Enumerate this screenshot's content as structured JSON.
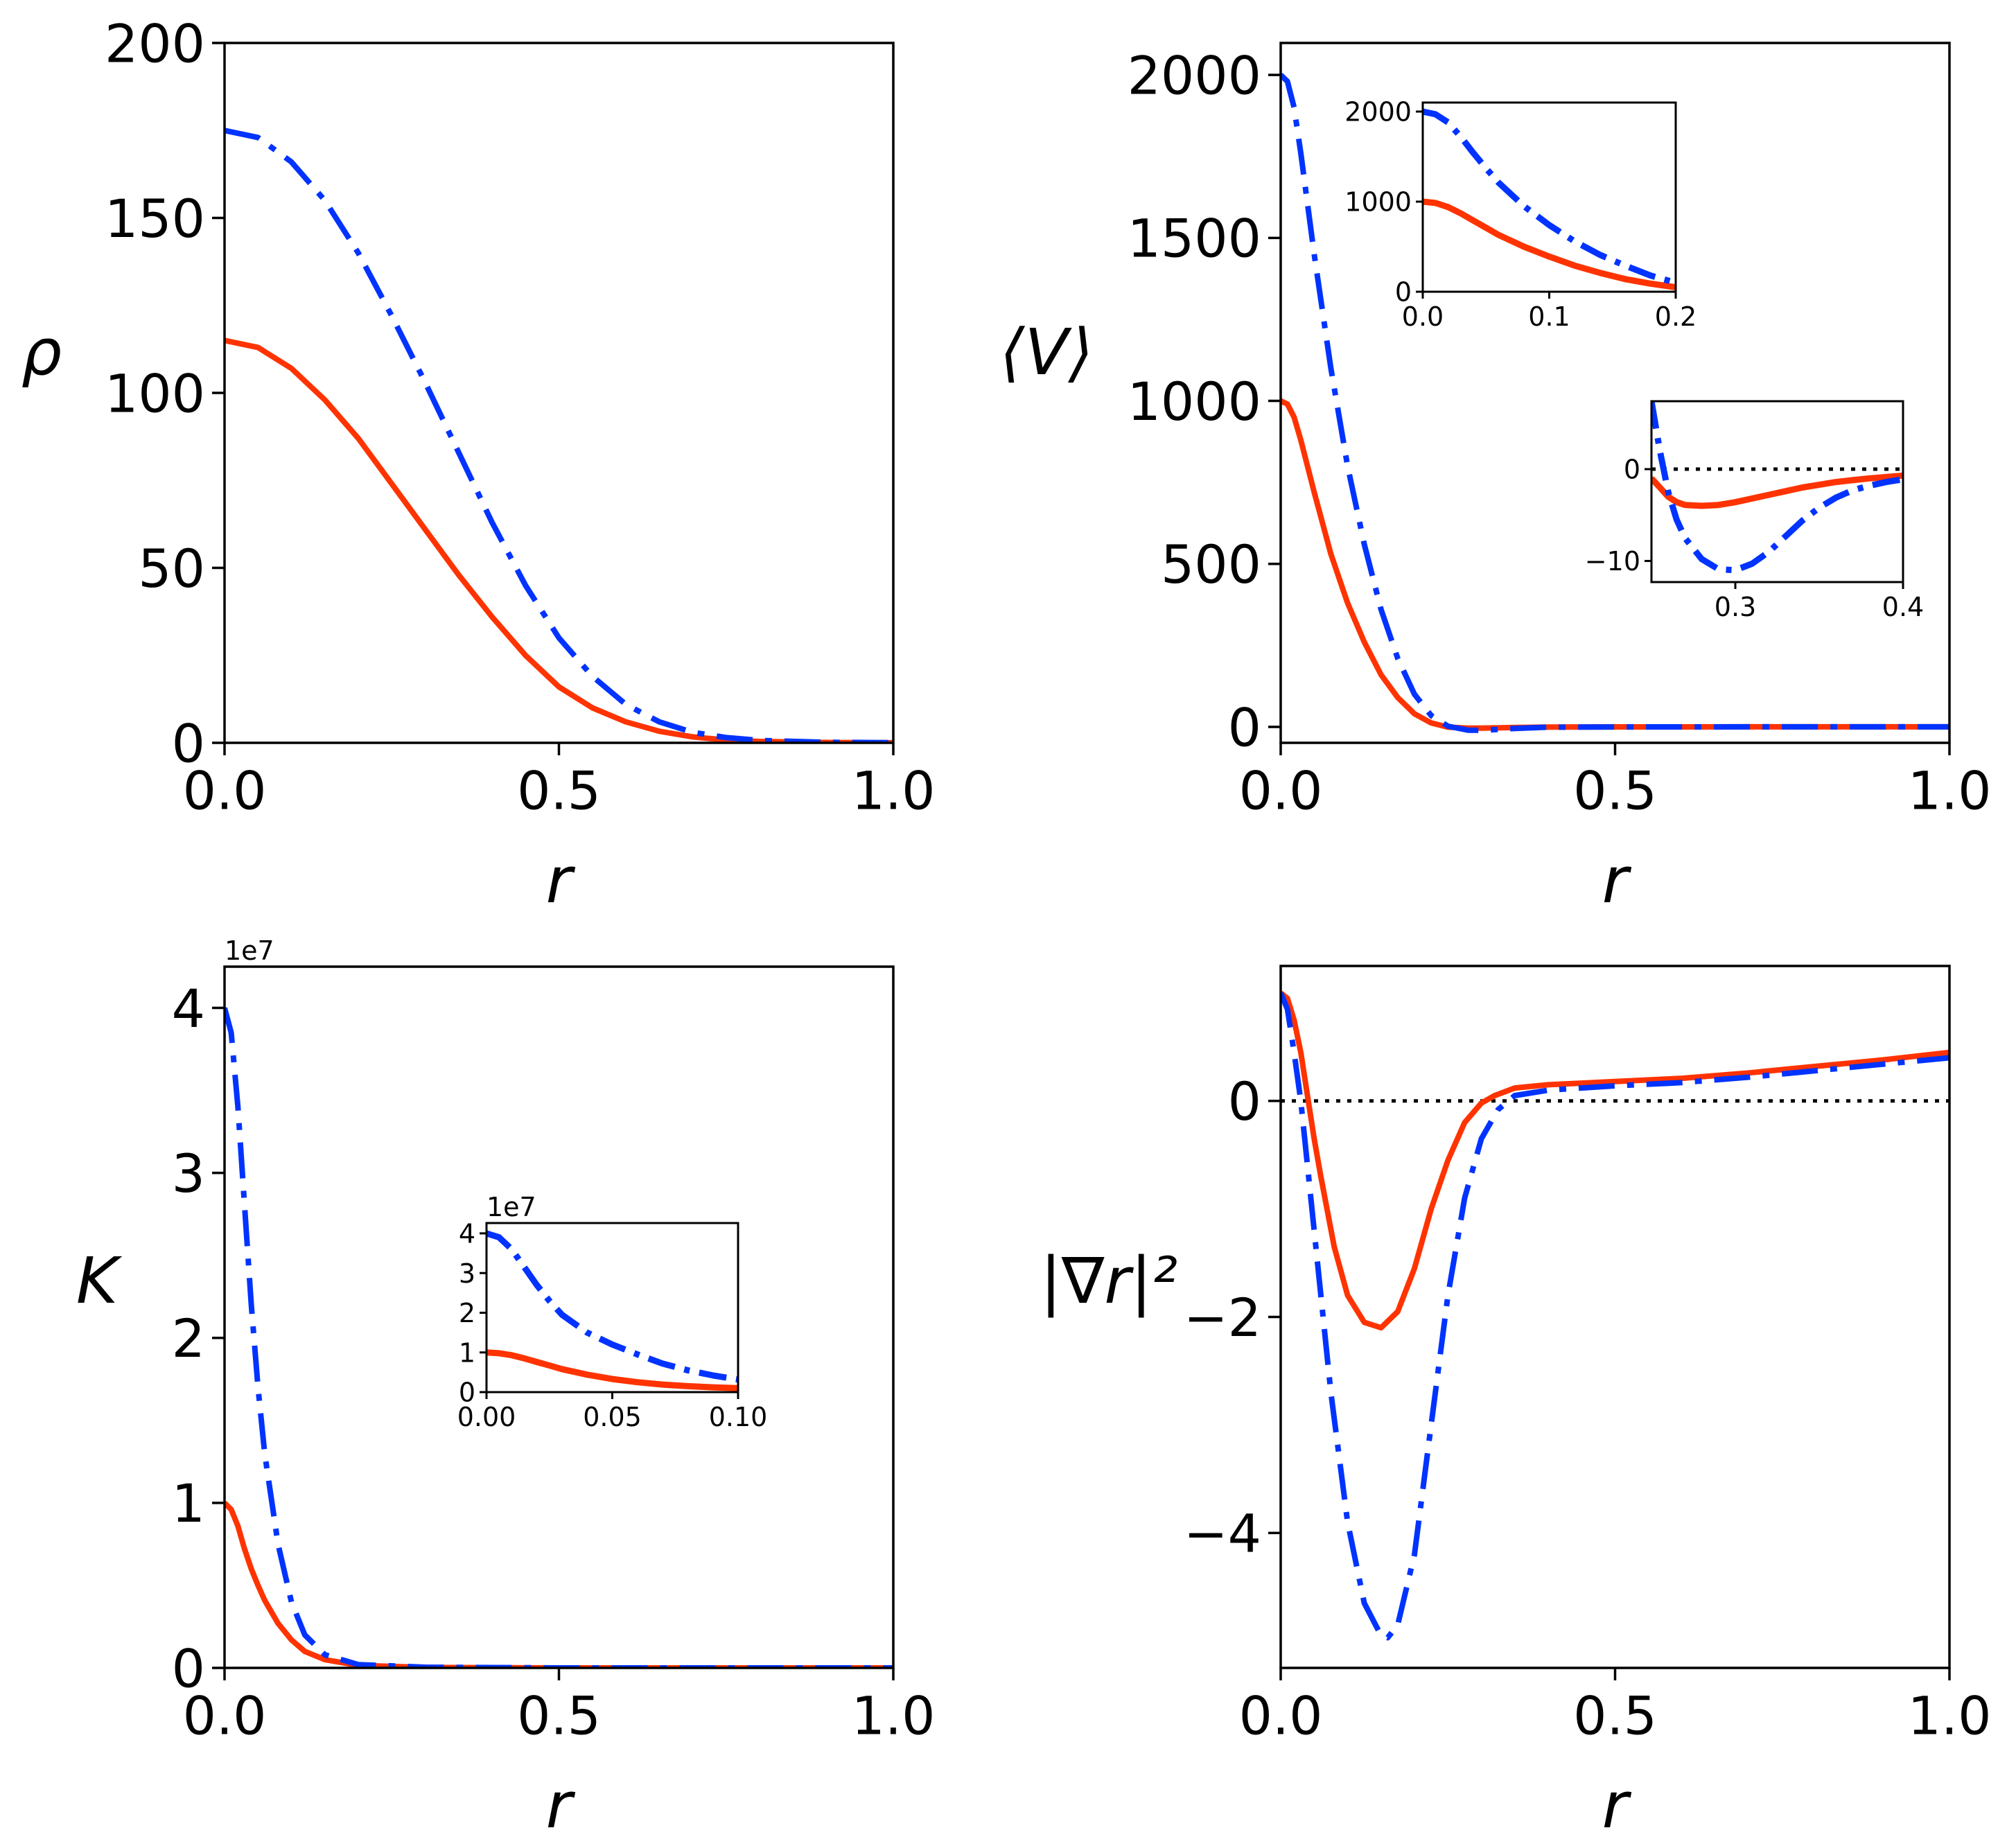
{
  "colors": {
    "series_a": "#ff3300",
    "series_b": "#0033ff",
    "axis": "#000000",
    "zero_line": "#000000"
  },
  "chart_data": [
    {
      "id": "rho",
      "type": "line",
      "title": "",
      "xlabel": "r",
      "ylabel": "ρ",
      "xlim": [
        0,
        1
      ],
      "ylim": [
        0,
        200
      ],
      "xticks": [
        0.0,
        0.5,
        1.0
      ],
      "xtick_labels": [
        "0.0",
        "0.5",
        "1.0"
      ],
      "yticks": [
        0,
        50,
        100,
        150,
        200
      ],
      "ytick_labels": [
        "0",
        "50",
        "100",
        "150",
        "200"
      ],
      "grid": false,
      "legend": null,
      "x": [
        0,
        0.05,
        0.1,
        0.15,
        0.2,
        0.25,
        0.3,
        0.35,
        0.4,
        0.45,
        0.5,
        0.55,
        0.6,
        0.65,
        0.7,
        0.75,
        0.8,
        0.9,
        1.0
      ],
      "series": [
        {
          "name": "solid",
          "style": "solid",
          "color": "#ff3300",
          "values": [
            115,
            113,
            107,
            98,
            87,
            74,
            61,
            48,
            36,
            25,
            16,
            10,
            6,
            3.3,
            1.7,
            0.8,
            0.4,
            0.1,
            0.02
          ]
        },
        {
          "name": "dash-dot",
          "style": "dashdot",
          "color": "#0033ff",
          "values": [
            175,
            173,
            166,
            155,
            140,
            122,
            103,
            83,
            63,
            45,
            30,
            19,
            11,
            6,
            3,
            1.5,
            0.7,
            0.15,
            0.03
          ]
        }
      ],
      "insets": []
    },
    {
      "id": "potential",
      "type": "line",
      "title": "",
      "xlabel": "r",
      "ylabel": "⟨V⟩",
      "xlim": [
        0,
        1
      ],
      "ylim": [
        -49,
        2098
      ],
      "xticks": [
        0.0,
        0.5,
        1.0
      ],
      "xtick_labels": [
        "0.0",
        "0.5",
        "1.0"
      ],
      "yticks": [
        0,
        500,
        1000,
        1500,
        2000
      ],
      "ytick_labels": [
        "0",
        "500",
        "1000",
        "1500",
        "2000"
      ],
      "grid": false,
      "legend": null,
      "x": [
        0,
        0.01,
        0.02,
        0.03,
        0.05,
        0.075,
        0.1,
        0.125,
        0.15,
        0.175,
        0.2,
        0.225,
        0.25,
        0.28,
        0.3,
        0.35,
        0.4,
        0.5,
        0.7,
        1.0
      ],
      "series": [
        {
          "name": "solid",
          "style": "solid",
          "color": "#ff3300",
          "values": [
            1000,
            990,
            950,
            880,
            720,
            530,
            380,
            260,
            160,
            90,
            40,
            12,
            -1,
            -4,
            -3.8,
            -2,
            -0.8,
            -0.2,
            0,
            0
          ]
        },
        {
          "name": "dash-dot",
          "style": "dashdot",
          "color": "#0033ff",
          "values": [
            2000,
            1980,
            1900,
            1760,
            1450,
            1100,
            800,
            560,
            360,
            210,
            100,
            35,
            2,
            -10,
            -10.8,
            -5,
            -1,
            -0.3,
            0,
            0
          ]
        }
      ],
      "insets": [
        {
          "id": "potential-inset-core",
          "xlim": [
            0,
            0.2
          ],
          "ylim": [
            0,
            2100
          ],
          "xticks": [
            0.0,
            0.1,
            0.2
          ],
          "xtick_labels": [
            "0.0",
            "0.1",
            "0.2"
          ],
          "yticks": [
            0,
            1000,
            2000
          ],
          "ytick_labels": [
            "0",
            "1000",
            "2000"
          ],
          "zero_line": false,
          "x": [
            0,
            0.01,
            0.02,
            0.03,
            0.04,
            0.05,
            0.06,
            0.08,
            0.1,
            0.12,
            0.14,
            0.16,
            0.18,
            0.2
          ],
          "series": [
            {
              "name": "solid",
              "style": "solid",
              "color": "#ff3300",
              "values": [
                1000,
                985,
                940,
                870,
                790,
                710,
                630,
                500,
                390,
                290,
                210,
                140,
                90,
                50
              ]
            },
            {
              "name": "dash-dot",
              "style": "dashdot",
              "color": "#0033ff",
              "values": [
                2000,
                1970,
                1880,
                1720,
                1540,
                1370,
                1210,
                950,
                740,
                560,
                410,
                290,
                180,
                100
              ]
            }
          ]
        },
        {
          "id": "potential-inset-well",
          "xlim": [
            0.25,
            0.4
          ],
          "ylim": [
            -12.3,
            7.4
          ],
          "xticks": [
            0.3,
            0.4
          ],
          "xtick_labels": [
            "0.3",
            "0.4"
          ],
          "yticks": [
            -10,
            0
          ],
          "ytick_labels": [
            "−10",
            "0"
          ],
          "zero_line": true,
          "x": [
            0.25,
            0.255,
            0.26,
            0.265,
            0.27,
            0.28,
            0.29,
            0.3,
            0.31,
            0.32,
            0.33,
            0.34,
            0.35,
            0.36,
            0.37,
            0.38,
            0.39,
            0.4
          ],
          "series": [
            {
              "name": "solid",
              "style": "solid",
              "color": "#ff3300",
              "values": [
                -1.0,
                -2.0,
                -3.0,
                -3.6,
                -3.9,
                -4.0,
                -3.9,
                -3.6,
                -3.2,
                -2.8,
                -2.4,
                -2.0,
                -1.7,
                -1.4,
                -1.2,
                -1.0,
                -0.85,
                -0.7
              ]
            },
            {
              "name": "dash-dot",
              "style": "dashdot",
              "color": "#0033ff",
              "values": [
                7.4,
                2.0,
                -2.5,
                -5.5,
                -7.5,
                -9.8,
                -10.9,
                -11.0,
                -10.3,
                -9.0,
                -7.3,
                -5.6,
                -4.2,
                -3.1,
                -2.3,
                -1.8,
                -1.4,
                -1.1
              ]
            }
          ]
        }
      ]
    },
    {
      "id": "kretschmann",
      "type": "line",
      "title": "",
      "xlabel": "r",
      "ylabel": "K",
      "offset_text": "1e7",
      "xlim": [
        0,
        1
      ],
      "ylim": [
        0,
        4.25
      ],
      "xticks": [
        0.0,
        0.5,
        1.0
      ],
      "xtick_labels": [
        "0.0",
        "0.5",
        "1.0"
      ],
      "yticks": [
        0,
        1,
        2,
        3,
        4
      ],
      "ytick_labels": [
        "0",
        "1",
        "2",
        "3",
        "4"
      ],
      "grid": false,
      "legend": null,
      "x": [
        0,
        0.01,
        0.02,
        0.03,
        0.04,
        0.05,
        0.06,
        0.08,
        0.1,
        0.12,
        0.15,
        0.2,
        0.3,
        0.5,
        1.0
      ],
      "series": [
        {
          "name": "solid",
          "style": "solid",
          "color": "#ff3300",
          "values": [
            1.0,
            0.96,
            0.86,
            0.72,
            0.6,
            0.5,
            0.41,
            0.27,
            0.17,
            0.1,
            0.05,
            0.015,
            0.003,
            0.0,
            0.0
          ]
        },
        {
          "name": "dash-dot",
          "style": "dashdot",
          "color": "#0033ff",
          "values": [
            4.0,
            3.85,
            3.4,
            2.8,
            2.2,
            1.7,
            1.3,
            0.75,
            0.4,
            0.2,
            0.08,
            0.02,
            0.004,
            0.0,
            0.0
          ]
        }
      ],
      "insets": [
        {
          "id": "kretschmann-inset-core",
          "offset_text": "1e7",
          "xlim": [
            0,
            0.1
          ],
          "ylim": [
            0,
            4.26
          ],
          "xticks": [
            0.0,
            0.05,
            0.1
          ],
          "xtick_labels": [
            "0.00",
            "0.05",
            "0.10"
          ],
          "yticks": [
            0,
            1,
            2,
            3,
            4
          ],
          "ytick_labels": [
            "0",
            "1",
            "2",
            "3",
            "4"
          ],
          "zero_line": false,
          "x": [
            0,
            0.005,
            0.01,
            0.015,
            0.02,
            0.025,
            0.03,
            0.04,
            0.05,
            0.06,
            0.07,
            0.08,
            0.09,
            0.1
          ],
          "series": [
            {
              "name": "solid",
              "style": "solid",
              "color": "#ff3300",
              "values": [
                1.0,
                0.98,
                0.93,
                0.85,
                0.76,
                0.67,
                0.58,
                0.44,
                0.33,
                0.25,
                0.19,
                0.15,
                0.12,
                0.1
              ]
            },
            {
              "name": "dash-dot",
              "style": "dashdot",
              "color": "#0033ff",
              "values": [
                4.0,
                3.9,
                3.6,
                3.15,
                2.7,
                2.3,
                1.95,
                1.5,
                1.2,
                0.95,
                0.72,
                0.55,
                0.42,
                0.32
              ]
            }
          ]
        }
      ]
    },
    {
      "id": "grad-r-squared",
      "type": "line",
      "title": "",
      "xlabel": "r",
      "ylabel": "|∇r|²",
      "xlim": [
        0,
        1
      ],
      "ylim": [
        -5.25,
        1.25
      ],
      "xticks": [
        0.0,
        0.5,
        1.0
      ],
      "xtick_labels": [
        "0.0",
        "0.5",
        "1.0"
      ],
      "yticks": [
        -4,
        -2,
        0
      ],
      "ytick_labels": [
        "−4",
        "−2",
        "0"
      ],
      "zero_line": true,
      "grid": false,
      "legend": null,
      "x_a": [
        0,
        0.01,
        0.02,
        0.03,
        0.04,
        0.05,
        0.06,
        0.08,
        0.1,
        0.125,
        0.15,
        0.175,
        0.2,
        0.225,
        0.25,
        0.275,
        0.3,
        0.32,
        0.35,
        0.4,
        0.5,
        0.6,
        0.7,
        0.8,
        0.9,
        1.0
      ],
      "x_b": [
        0,
        0.01,
        0.02,
        0.03,
        0.05,
        0.075,
        0.1,
        0.125,
        0.15,
        0.16,
        0.175,
        0.2,
        0.225,
        0.25,
        0.275,
        0.3,
        0.325,
        0.35,
        0.4,
        0.5,
        0.6,
        0.7,
        0.8,
        0.9,
        1.0
      ],
      "series": [
        {
          "name": "solid",
          "style": "solid",
          "color": "#ff3300",
          "x_key": "x_a",
          "values": [
            1.0,
            0.95,
            0.75,
            0.45,
            0.05,
            -0.35,
            -0.7,
            -1.35,
            -1.8,
            -2.05,
            -2.1,
            -1.95,
            -1.55,
            -1.0,
            -0.55,
            -0.2,
            -0.02,
            0.05,
            0.12,
            0.15,
            0.18,
            0.21,
            0.26,
            0.32,
            0.38,
            0.45
          ]
        },
        {
          "name": "dash-dot",
          "style": "dashdot",
          "color": "#0033ff",
          "x_key": "x_b",
          "values": [
            1.0,
            0.85,
            0.45,
            0.0,
            -1.2,
            -2.7,
            -3.9,
            -4.65,
            -4.95,
            -4.97,
            -4.85,
            -4.2,
            -3.0,
            -1.8,
            -0.9,
            -0.35,
            -0.08,
            0.05,
            0.1,
            0.14,
            0.17,
            0.22,
            0.28,
            0.34,
            0.4
          ]
        }
      ],
      "insets": []
    }
  ]
}
